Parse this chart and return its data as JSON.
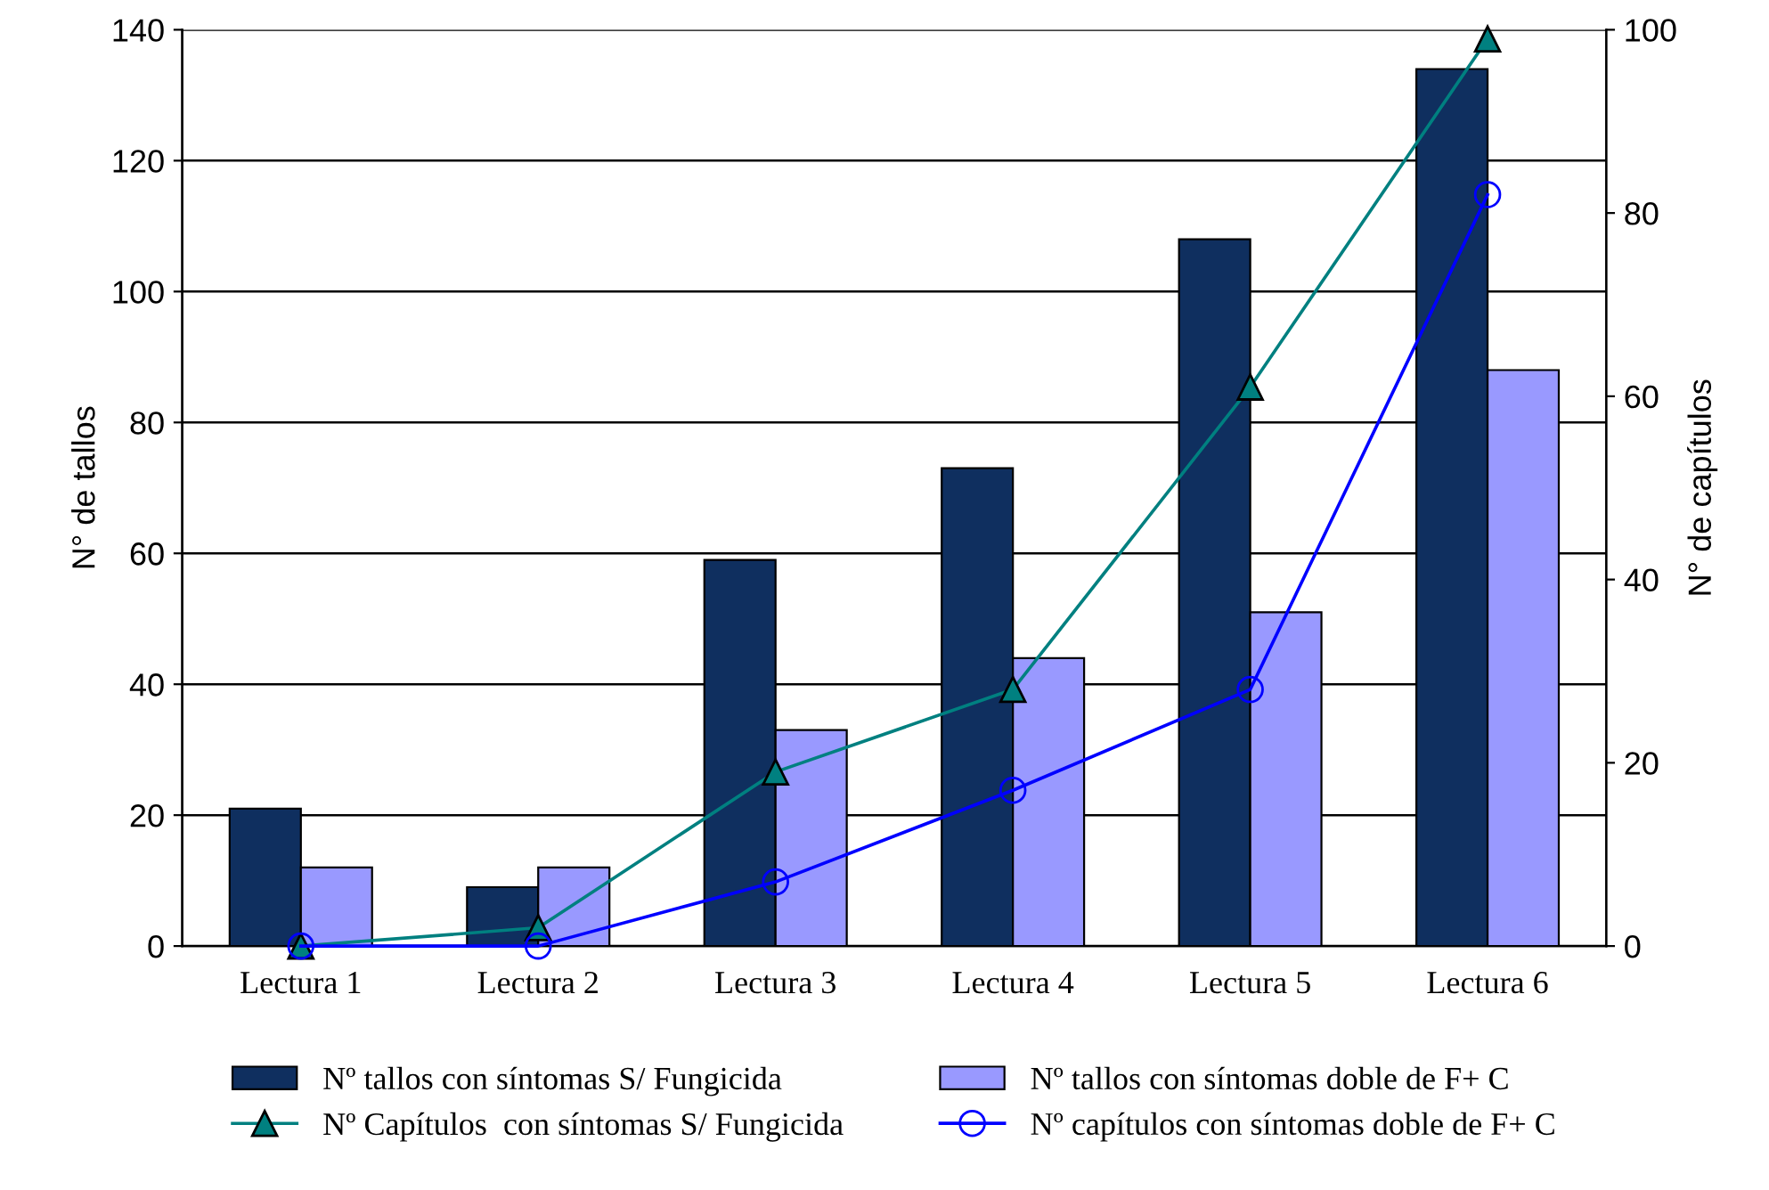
{
  "chart_data": {
    "type": "bar",
    "categories": [
      "Lectura 1",
      "Lectura 2",
      "Lectura 3",
      "Lectura 4",
      "Lectura 5",
      "Lectura 6"
    ],
    "ylabel": "N° de tallos",
    "y2label": "N° de capítulos",
    "ylim": [
      0,
      140
    ],
    "yticks": [
      0,
      20,
      40,
      60,
      80,
      100,
      120,
      140
    ],
    "y2lim": [
      0,
      100
    ],
    "y2ticks": [
      0,
      20,
      40,
      60,
      80,
      100
    ],
    "grid": "y",
    "legend": "bottom",
    "series": [
      {
        "name": "Nº tallos con síntomas S/ Fungicida",
        "color": "#0f2f5f",
        "values": [
          21,
          9,
          59,
          73,
          108,
          134
        ]
      },
      {
        "name": "Nº tallos con síntomas doble de F+ C",
        "color": "#9999ff",
        "values": [
          12,
          12,
          33,
          44,
          51,
          88
        ]
      },
      {
        "name": "Nº Capítulos  con síntomas S/ Fungicida",
        "type": "line",
        "axis": "y2",
        "marker": "triangle",
        "color": "#008080",
        "values": [
          0,
          2,
          19,
          28,
          61,
          99
        ]
      },
      {
        "name": "Nº capítulos con síntomas doble de F+ C",
        "type": "line",
        "axis": "y2",
        "marker": "circle",
        "color": "#0000ff",
        "values": [
          0,
          0,
          7,
          17,
          28,
          82
        ]
      }
    ]
  }
}
